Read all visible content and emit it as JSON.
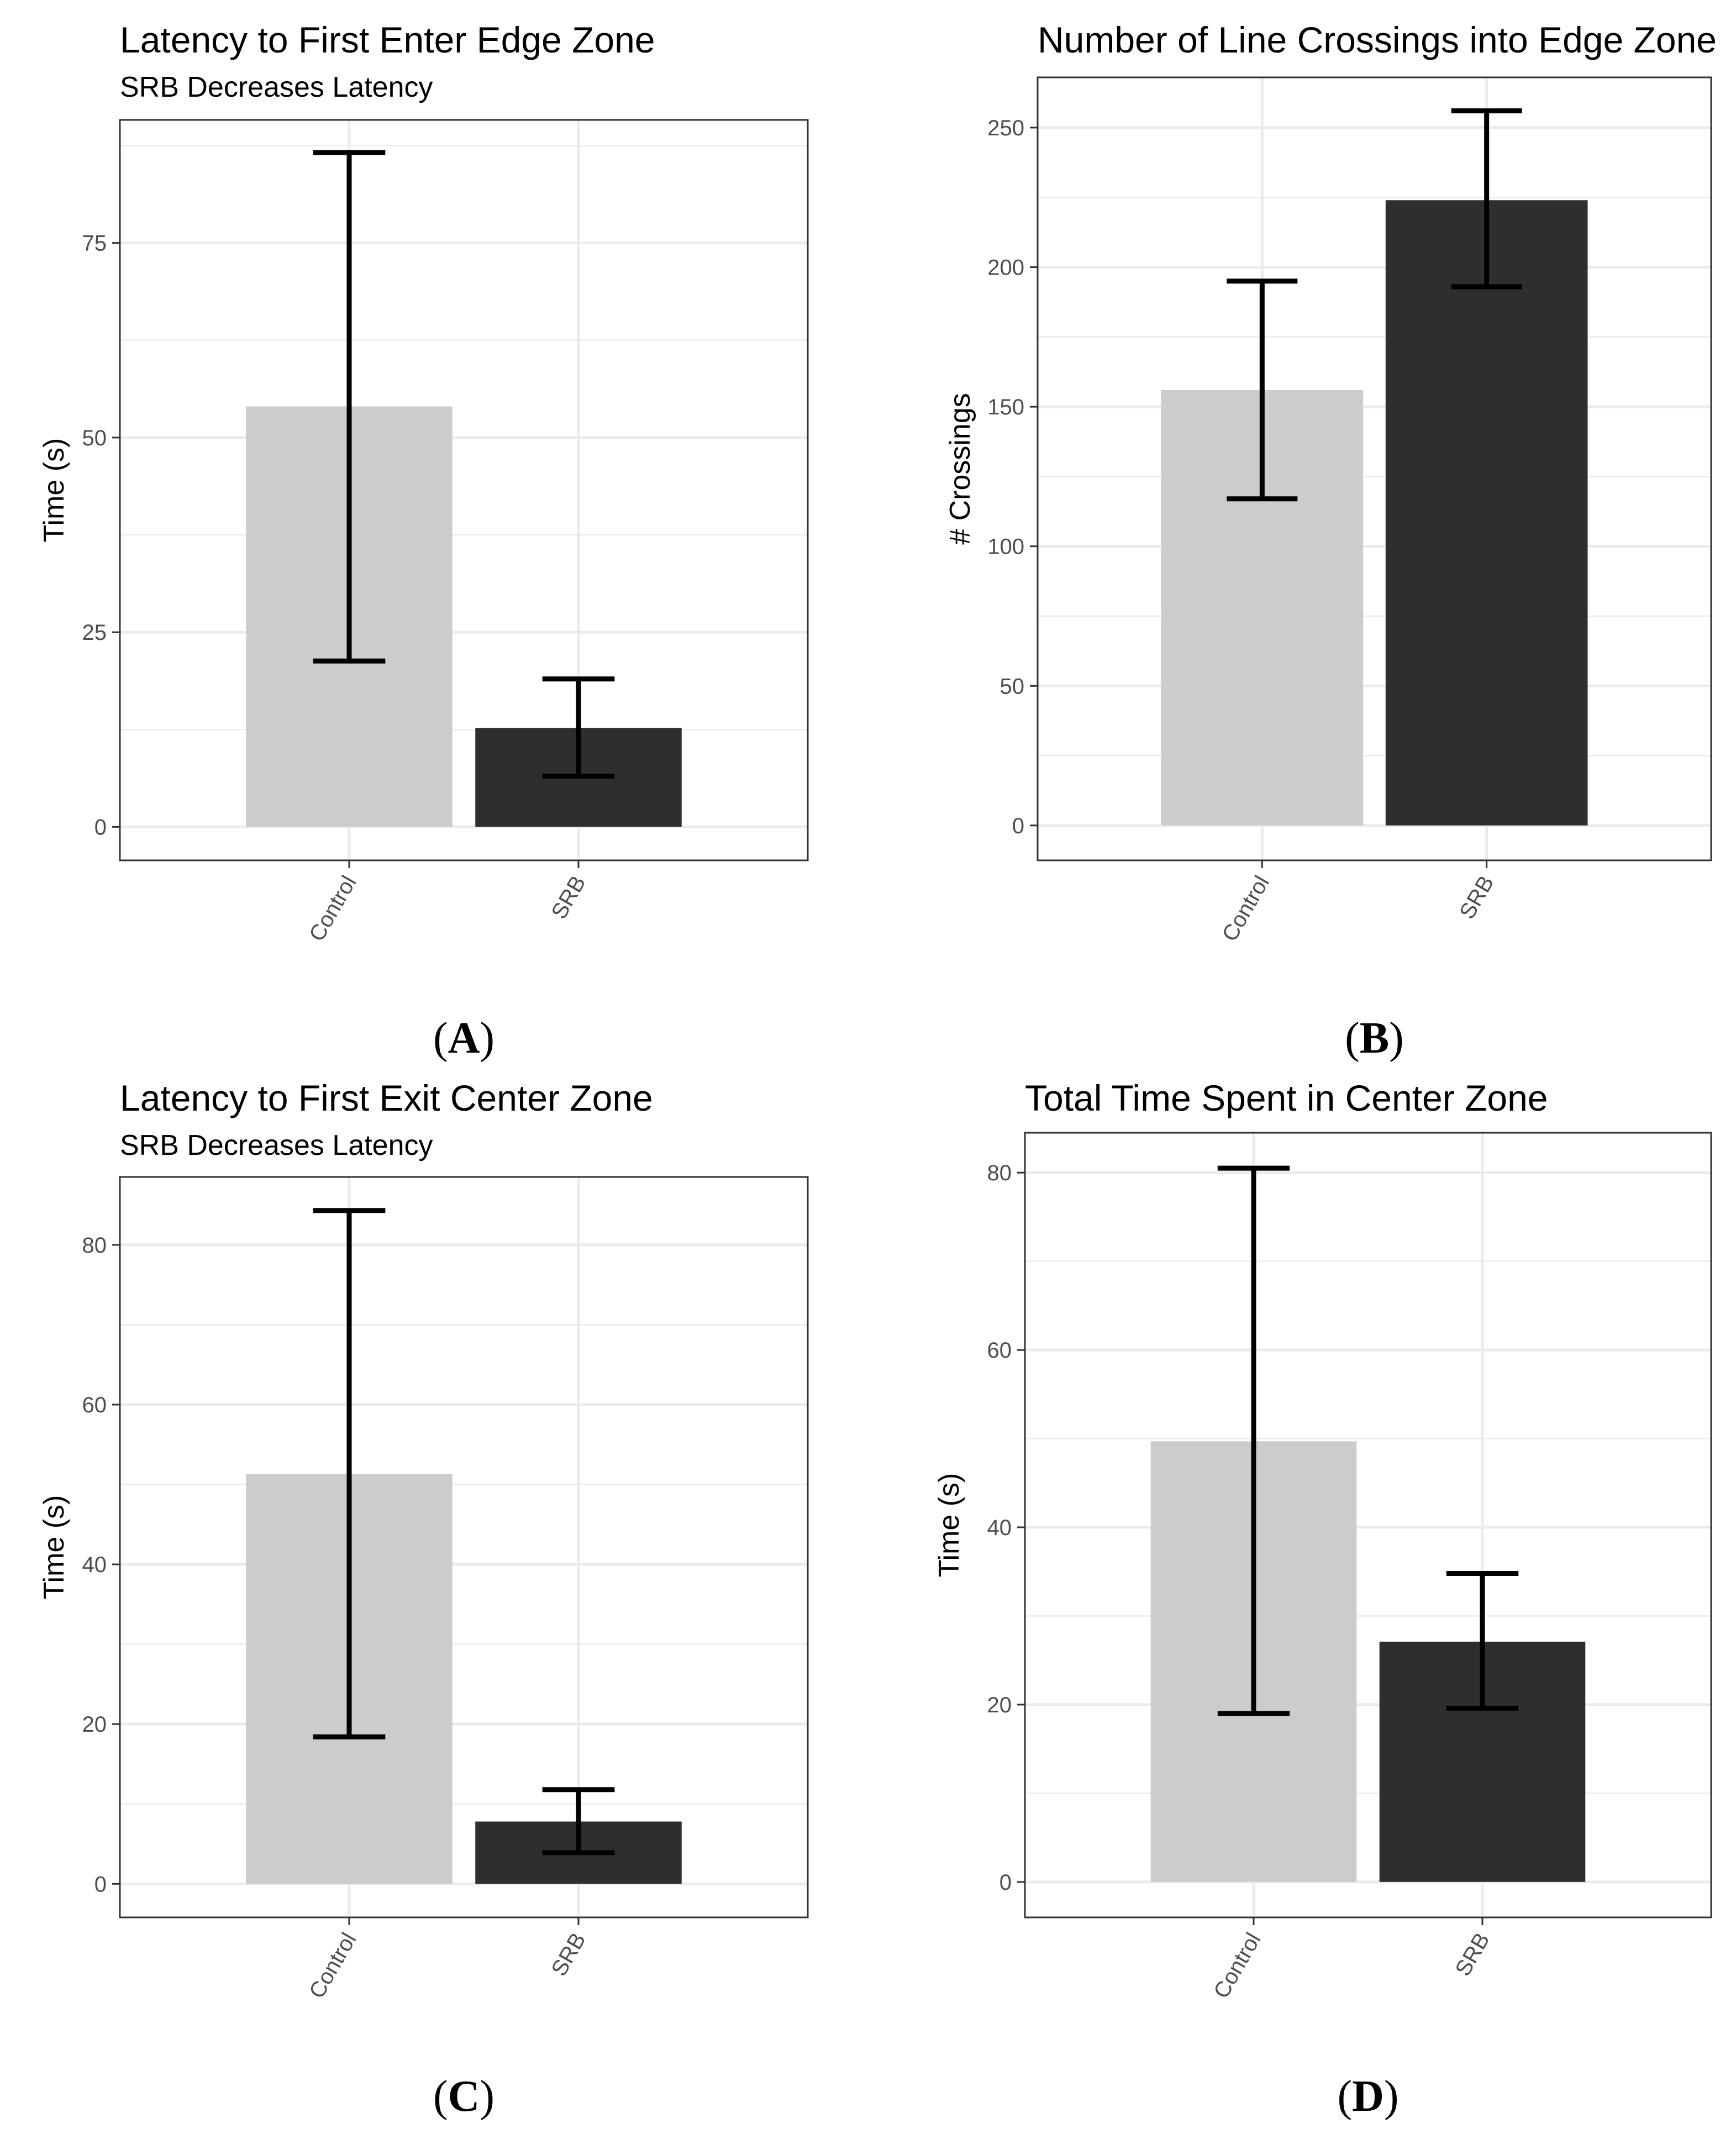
{
  "colors": {
    "control": "#cccccc",
    "srb": "#2e2e2e",
    "grid": "#ebebeb",
    "border": "#333333",
    "errorbar": "#000000"
  },
  "chart_data": [
    {
      "id": "A",
      "panel_label": "A",
      "type": "bar",
      "title": "Latency to First Enter Edge Zone",
      "subtitle": "SRB Decreases Latency",
      "xlabel": "",
      "ylabel": "Time (s)",
      "categories": [
        "Control",
        "SRB"
      ],
      "values": [
        54,
        12.7
      ],
      "error_low": [
        21.3,
        6.5
      ],
      "error_high": [
        86.6,
        19
      ],
      "ylim": [
        -4.3,
        90.8
      ],
      "yticks": [
        0,
        25,
        50,
        75
      ],
      "ytick_labels": [
        "0",
        "25",
        "50",
        "75"
      ],
      "minor_yticks": [
        12.5,
        37.5,
        62.5,
        87.5
      ]
    },
    {
      "id": "B",
      "panel_label": "B",
      "type": "bar",
      "title": "Number of Line Crossings into Edge Zone",
      "subtitle": "",
      "xlabel": "",
      "ylabel": "# Crossings",
      "categories": [
        "Control",
        "SRB"
      ],
      "values": [
        156,
        224
      ],
      "error_low": [
        117,
        193
      ],
      "error_high": [
        195,
        256
      ],
      "ylim": [
        -12.5,
        268
      ],
      "yticks": [
        0,
        50,
        100,
        150,
        200,
        250
      ],
      "ytick_labels": [
        "0",
        "50",
        "100",
        "150",
        "200",
        "250"
      ],
      "minor_yticks": [
        25,
        75,
        125,
        175,
        225
      ]
    },
    {
      "id": "C",
      "panel_label": "C",
      "type": "bar",
      "title": "Latency to First Exit Center Zone",
      "subtitle": "SRB Decreases Latency",
      "xlabel": "",
      "ylabel": "Time (s)",
      "categories": [
        "Control",
        "SRB"
      ],
      "values": [
        51.3,
        7.8
      ],
      "error_low": [
        18.4,
        3.9
      ],
      "error_high": [
        84.3,
        11.8
      ],
      "ylim": [
        -4.2,
        88.5
      ],
      "yticks": [
        0,
        20,
        40,
        60,
        80
      ],
      "ytick_labels": [
        "0",
        "20",
        "40",
        "60",
        "80"
      ],
      "minor_yticks": [
        10,
        30,
        50,
        70
      ]
    },
    {
      "id": "D",
      "panel_label": "D",
      "type": "bar",
      "title": "Total Time Spent in Center Zone",
      "subtitle": "",
      "xlabel": "",
      "ylabel": "Time (s)",
      "categories": [
        "Control",
        "SRB"
      ],
      "values": [
        49.7,
        27.1
      ],
      "error_low": [
        19,
        19.6
      ],
      "error_high": [
        80.5,
        34.8
      ],
      "ylim": [
        -4,
        84.5
      ],
      "yticks": [
        0,
        20,
        40,
        60,
        80
      ],
      "ytick_labels": [
        "0",
        "20",
        "40",
        "60",
        "80"
      ],
      "minor_yticks": [
        10,
        30,
        50,
        70
      ]
    }
  ]
}
